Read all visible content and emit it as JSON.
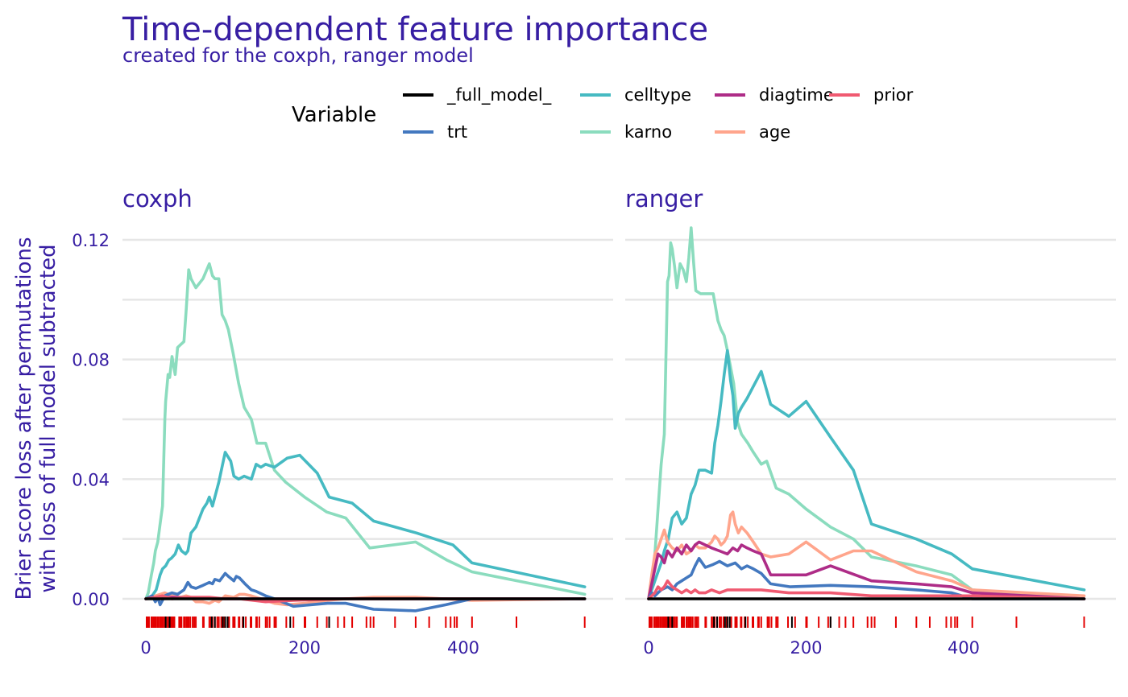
{
  "title": "Time-dependent feature importance",
  "subtitle": "created for the coxph, ranger model",
  "legend": {
    "title": "Variable",
    "entries": [
      {
        "label": "_full_model_",
        "color": "#000000"
      },
      {
        "label": "trt",
        "color": "#4378bf"
      },
      {
        "label": "celltype",
        "color": "#46bac2"
      },
      {
        "label": "karno",
        "color": "#8bdcbe"
      },
      {
        "label": "diagtime",
        "color": "#ae2c87"
      },
      {
        "label": "age",
        "color": "#ffa58c"
      },
      {
        "label": "prior",
        "color": "#f05a71"
      }
    ]
  },
  "ylabel_lines": [
    "Brier score loss after permutations",
    "with loss of full model subtracted"
  ],
  "chart_data": [
    {
      "type": "line",
      "panel": "coxph",
      "ylim": [
        0,
        0.12
      ],
      "xlim": [
        0,
        553
      ],
      "x_ticks": [
        "0",
        "200",
        "400"
      ],
      "y_ticks": [
        "0.00",
        "0.04",
        "0.08",
        "0.12"
      ],
      "series": [
        {
          "name": "_full_model_",
          "x": [
            0,
            553
          ],
          "y": [
            0,
            0
          ]
        },
        {
          "name": "trt",
          "x": [
            0,
            8,
            12,
            15,
            18,
            20,
            24,
            28,
            33,
            40,
            48,
            53,
            57,
            63,
            72,
            80,
            84,
            87,
            93,
            100,
            104,
            111,
            114,
            118,
            125,
            133,
            139,
            151,
            162,
            186,
            229,
            252,
            287,
            340,
            378,
            411,
            553
          ],
          "y": [
            0,
            0.001,
            -0.001,
            0.0005,
            -0.002,
            -0.001,
            0.001,
            0.0015,
            0.002,
            0.0015,
            0.003,
            0.0055,
            0.004,
            0.0035,
            0.0045,
            0.0055,
            0.005,
            0.0065,
            0.006,
            0.0085,
            0.0075,
            0.006,
            0.0075,
            0.007,
            0.005,
            0.003,
            0.0025,
            0.001,
            0,
            -0.0025,
            -0.0015,
            -0.0015,
            -0.0035,
            -0.004,
            -0.002,
            0,
            0
          ]
        },
        {
          "name": "celltype",
          "x": [
            0,
            8,
            13,
            18,
            21,
            25,
            29,
            32,
            37,
            41,
            45,
            50,
            53,
            57,
            63,
            72,
            77,
            80,
            84,
            92,
            100,
            107,
            111,
            117,
            124,
            133,
            139,
            145,
            151,
            162,
            178,
            194,
            216,
            231,
            260,
            287,
            341,
            387,
            411,
            553
          ],
          "y": [
            0,
            0.001,
            0.003,
            0.008,
            0.01,
            0.011,
            0.013,
            0.0135,
            0.015,
            0.018,
            0.016,
            0.015,
            0.016,
            0.022,
            0.024,
            0.03,
            0.032,
            0.034,
            0.031,
            0.039,
            0.049,
            0.046,
            0.041,
            0.04,
            0.041,
            0.04,
            0.045,
            0.044,
            0.045,
            0.044,
            0.047,
            0.048,
            0.042,
            0.034,
            0.032,
            0.026,
            0.022,
            0.018,
            0.012,
            0.004
          ]
        },
        {
          "name": "karno",
          "x": [
            0,
            3,
            7,
            10,
            12,
            15,
            18,
            21,
            24,
            25,
            28,
            30,
            33,
            37,
            40,
            44,
            48,
            51,
            54,
            57,
            63,
            72,
            80,
            84,
            87,
            92,
            96,
            100,
            104,
            110,
            117,
            124,
            133,
            140,
            151,
            162,
            176,
            200,
            228,
            252,
            282,
            340,
            379,
            411,
            553
          ],
          "y": [
            0,
            0.002,
            0.008,
            0.012,
            0.016,
            0.019,
            0.025,
            0.031,
            0.06,
            0.066,
            0.075,
            0.074,
            0.081,
            0.075,
            0.084,
            0.085,
            0.086,
            0.097,
            0.11,
            0.107,
            0.104,
            0.107,
            0.112,
            0.108,
            0.107,
            0.107,
            0.095,
            0.093,
            0.09,
            0.082,
            0.072,
            0.064,
            0.06,
            0.052,
            0.052,
            0.043,
            0.039,
            0.034,
            0.029,
            0.027,
            0.017,
            0.019,
            0.013,
            0.009,
            0.0015
          ]
        },
        {
          "name": "diagtime",
          "x": [
            0,
            30,
            60,
            100,
            162,
            250,
            411,
            553
          ],
          "y": [
            0,
            0.0005,
            0.0003,
            0,
            0,
            0,
            0,
            0
          ]
        },
        {
          "name": "age",
          "x": [
            0,
            12,
            24,
            33,
            44,
            51,
            57,
            63,
            72,
            80,
            87,
            92,
            100,
            111,
            118,
            124,
            133,
            151,
            162,
            178,
            200,
            228,
            252,
            287,
            340,
            411,
            553
          ],
          "y": [
            0,
            0.001,
            0.002,
            0.001,
            0.0005,
            0.001,
            0.0005,
            -0.001,
            -0.001,
            -0.0015,
            -0.0005,
            -0.001,
            0.001,
            0.0005,
            0.0015,
            0.0015,
            0.001,
            -0.0005,
            -0.0015,
            -0.002,
            -0.0015,
            -0.0005,
            0,
            0.0005,
            0.0005,
            -0.0005,
            0
          ]
        },
        {
          "name": "prior",
          "x": [
            0,
            12,
            21,
            33,
            53,
            80,
            100,
            118,
            151,
            186,
            252,
            411,
            553
          ],
          "y": [
            0,
            0.0005,
            0.001,
            0,
            0.0005,
            0.0005,
            0,
            0,
            -0.001,
            -0.0005,
            0,
            0,
            0
          ]
        }
      ]
    },
    {
      "type": "line",
      "panel": "ranger",
      "ylim": [
        0,
        0.12
      ],
      "xlim": [
        0,
        553
      ],
      "x_ticks": [
        "0",
        "200",
        "400"
      ],
      "y_ticks": [
        "0.00",
        "0.04",
        "0.08",
        "0.12"
      ],
      "series": [
        {
          "name": "_full_model_",
          "x": [
            0,
            553
          ],
          "y": [
            0,
            0
          ]
        },
        {
          "name": "trt",
          "x": [
            0,
            4,
            8,
            12,
            16,
            20,
            24,
            30,
            36,
            42,
            48,
            54,
            59,
            64,
            72,
            82,
            90,
            100,
            110,
            118,
            125,
            133,
            143,
            155,
            180,
            231,
            283,
            340,
            385,
            411,
            553
          ],
          "y": [
            0,
            0.002,
            0.001,
            0.002,
            0.003,
            0.0035,
            0.004,
            0.003,
            0.005,
            0.006,
            0.007,
            0.008,
            0.011,
            0.0135,
            0.0105,
            0.0115,
            0.0125,
            0.011,
            0.012,
            0.01,
            0.011,
            0.01,
            0.0085,
            0.005,
            0.004,
            0.0045,
            0.004,
            0.003,
            0.002,
            0,
            0
          ]
        },
        {
          "name": "celltype",
          "x": [
            0,
            4,
            8,
            12,
            16,
            20,
            25,
            30,
            36,
            42,
            48,
            54,
            59,
            64,
            72,
            80,
            84,
            88,
            92,
            96,
            100,
            104,
            107,
            110,
            114,
            118,
            125,
            133,
            143,
            155,
            178,
            200,
            231,
            260,
            283,
            340,
            385,
            411,
            553
          ],
          "y": [
            0,
            0.003,
            0.006,
            0.009,
            0.012,
            0.016,
            0.02,
            0.027,
            0.029,
            0.025,
            0.027,
            0.035,
            0.038,
            0.043,
            0.043,
            0.042,
            0.052,
            0.058,
            0.066,
            0.075,
            0.083,
            0.073,
            0.068,
            0.057,
            0.062,
            0.064,
            0.067,
            0.071,
            0.076,
            0.065,
            0.061,
            0.066,
            0.054,
            0.043,
            0.025,
            0.02,
            0.015,
            0.01,
            0.003
          ]
        },
        {
          "name": "karno",
          "x": [
            0,
            4,
            8,
            12,
            16,
            20,
            24,
            26,
            28,
            30,
            33,
            36,
            40,
            44,
            48,
            51,
            54,
            57,
            60,
            66,
            72,
            82,
            88,
            92,
            96,
            100,
            108,
            113,
            118,
            126,
            133,
            143,
            150,
            162,
            178,
            200,
            231,
            260,
            283,
            340,
            385,
            411,
            553
          ],
          "y": [
            0,
            0.005,
            0.015,
            0.03,
            0.045,
            0.055,
            0.106,
            0.108,
            0.119,
            0.117,
            0.111,
            0.104,
            0.112,
            0.11,
            0.106,
            0.114,
            0.124,
            0.113,
            0.103,
            0.102,
            0.102,
            0.102,
            0.093,
            0.09,
            0.088,
            0.083,
            0.072,
            0.059,
            0.055,
            0.052,
            0.049,
            0.045,
            0.046,
            0.037,
            0.035,
            0.03,
            0.024,
            0.02,
            0.014,
            0.011,
            0.008,
            0.003,
            0
          ]
        },
        {
          "name": "diagtime",
          "x": [
            0,
            4,
            8,
            12,
            16,
            20,
            24,
            30,
            36,
            42,
            48,
            54,
            59,
            64,
            72,
            80,
            90,
            100,
            107,
            113,
            118,
            125,
            133,
            143,
            155,
            178,
            200,
            231,
            283,
            340,
            385,
            411,
            553
          ],
          "y": [
            0,
            0.005,
            0.01,
            0.015,
            0.014,
            0.012,
            0.016,
            0.014,
            0.017,
            0.015,
            0.018,
            0.016,
            0.018,
            0.019,
            0.018,
            0.017,
            0.016,
            0.015,
            0.017,
            0.016,
            0.018,
            0.017,
            0.016,
            0.015,
            0.008,
            0.008,
            0.008,
            0.011,
            0.006,
            0.005,
            0.004,
            0.002,
            0
          ]
        },
        {
          "name": "age",
          "x": [
            0,
            4,
            8,
            12,
            16,
            20,
            24,
            30,
            36,
            42,
            48,
            54,
            59,
            64,
            72,
            80,
            84,
            88,
            92,
            96,
            100,
            104,
            107,
            110,
            114,
            118,
            125,
            133,
            143,
            155,
            178,
            200,
            231,
            260,
            283,
            340,
            385,
            411,
            553
          ],
          "y": [
            0,
            0.008,
            0.015,
            0.017,
            0.02,
            0.023,
            0.019,
            0.017,
            0.016,
            0.018,
            0.015,
            0.016,
            0.018,
            0.017,
            0.017,
            0.019,
            0.021,
            0.02,
            0.018,
            0.019,
            0.021,
            0.028,
            0.029,
            0.025,
            0.022,
            0.024,
            0.022,
            0.019,
            0.015,
            0.014,
            0.015,
            0.019,
            0.013,
            0.016,
            0.016,
            0.009,
            0.006,
            0.003,
            0.001
          ]
        },
        {
          "name": "prior",
          "x": [
            0,
            4,
            8,
            12,
            16,
            20,
            24,
            30,
            36,
            42,
            48,
            54,
            59,
            64,
            72,
            80,
            90,
            100,
            110,
            125,
            143,
            178,
            231,
            283,
            340,
            411,
            553
          ],
          "y": [
            0,
            0.001,
            0.002,
            0.004,
            0.003,
            0.004,
            0.006,
            0.004,
            0.003,
            0.002,
            0.003,
            0.002,
            0.003,
            0.002,
            0.002,
            0.003,
            0.002,
            0.003,
            0.003,
            0.003,
            0.003,
            0.002,
            0.002,
            0.001,
            0.001,
            0.001,
            0
          ]
        }
      ]
    }
  ],
  "rug": {
    "times": [
      1,
      2,
      3,
      4,
      7,
      8,
      8,
      10,
      11,
      12,
      13,
      15,
      16,
      18,
      19,
      20,
      21,
      22,
      24,
      25,
      27,
      29,
      30,
      31,
      33,
      35,
      36,
      42,
      43,
      44,
      45,
      48,
      49,
      51,
      52,
      53,
      54,
      56,
      59,
      61,
      63,
      72,
      73,
      80,
      82,
      83,
      84,
      87,
      90,
      92,
      95,
      99,
      100,
      103,
      105,
      110,
      111,
      112,
      117,
      118,
      122,
      126,
      132,
      133,
      139,
      140,
      143,
      151,
      153,
      156,
      162,
      164,
      177,
      186,
      200,
      201,
      216,
      228,
      231,
      242,
      250,
      260,
      278,
      283,
      287,
      314,
      340,
      357,
      378,
      384,
      389,
      392,
      411,
      467,
      553
    ],
    "censored_times": [
      25,
      30,
      83,
      87,
      97,
      100,
      103,
      123,
      182,
      231
    ],
    "event_color": "#e30000",
    "censored_color": "#000000"
  }
}
